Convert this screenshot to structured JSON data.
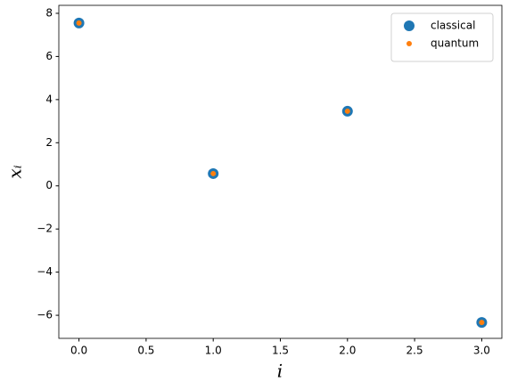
{
  "chart_data": {
    "type": "scatter",
    "xlabel": "i",
    "ylabel": "xᵢ",
    "x": [
      0,
      1,
      2,
      3
    ],
    "series": [
      {
        "name": "classical",
        "color": "#1f77b4",
        "values": [
          7.55,
          0.57,
          3.46,
          -6.33
        ]
      },
      {
        "name": "quantum",
        "color": "#ff7f0e",
        "values": [
          7.55,
          0.57,
          3.46,
          -6.33
        ]
      }
    ],
    "xlim": [
      -0.15,
      3.15
    ],
    "xticks": [
      {
        "value": 0,
        "label": "0.0"
      },
      {
        "value": 0.5,
        "label": "0.5"
      },
      {
        "value": 1,
        "label": "1.0"
      },
      {
        "value": 1.5,
        "label": "1.5"
      },
      {
        "value": 2,
        "label": "2.0"
      },
      {
        "value": 2.5,
        "label": "2.5"
      },
      {
        "value": 3,
        "label": "3.0"
      }
    ],
    "ylim": [
      -7.07,
      8.37
    ],
    "yticks": [
      {
        "value": -6,
        "label": "−6"
      },
      {
        "value": -4,
        "label": "−4"
      },
      {
        "value": -2,
        "label": "−2"
      },
      0,
      2,
      4,
      6,
      8
    ],
    "grid": false,
    "legend": "upper-right"
  }
}
